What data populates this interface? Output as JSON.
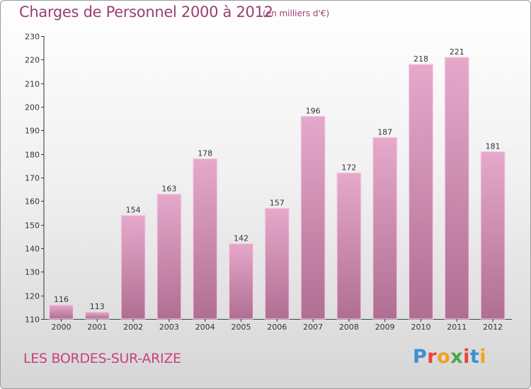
{
  "header": {
    "title": "Charges de Personnel 2000 à 2012",
    "subtitle": "(en milliers d'€)"
  },
  "footer": {
    "commune": "LES BORDES-SUR-ARIZE",
    "logo_text": "Proxiti"
  },
  "colors": {
    "bar_light": "#e6a9cb",
    "bar_dark": "#b06e92",
    "title": "#9a3f6f",
    "commune": "#c8407e"
  },
  "chart_data": {
    "type": "bar",
    "title": "Charges de Personnel 2000 à 2012",
    "subtitle": "(en milliers d'€)",
    "xlabel": "",
    "ylabel": "",
    "categories": [
      "2000",
      "2001",
      "2002",
      "2003",
      "2004",
      "2005",
      "2006",
      "2007",
      "2008",
      "2009",
      "2010",
      "2011",
      "2012"
    ],
    "values": [
      116,
      113,
      154,
      163,
      178,
      142,
      157,
      196,
      172,
      187,
      218,
      221,
      181
    ],
    "ylim": [
      110,
      230
    ],
    "yticks": [
      110,
      120,
      130,
      140,
      150,
      160,
      170,
      180,
      190,
      200,
      210,
      220,
      230
    ],
    "grid": false,
    "legend": "none"
  }
}
